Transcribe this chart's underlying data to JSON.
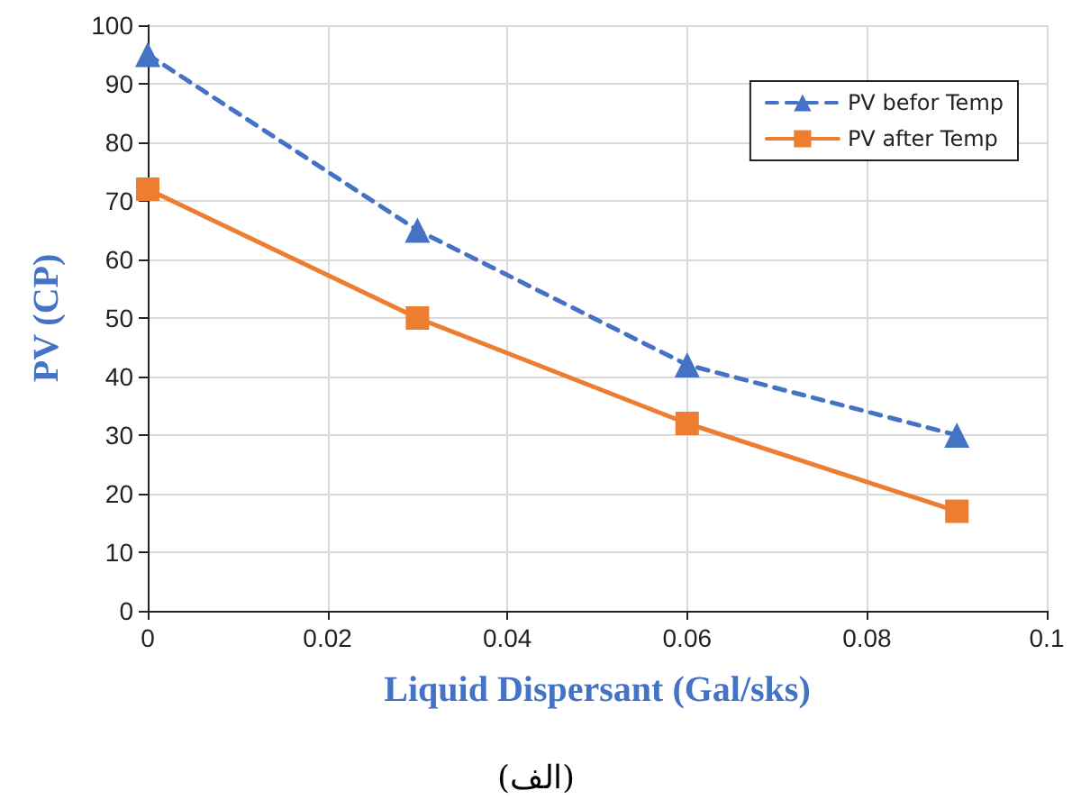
{
  "chart_data": {
    "type": "line",
    "xlabel": "Liquid Dispersant (Gal/sks)",
    "ylabel": "PV (CP)",
    "annotations": [
      "(الف)"
    ],
    "x": [
      0,
      0.03,
      0.06,
      0.09
    ],
    "series": [
      {
        "name": "PV befor Temp",
        "color": "#4472c4",
        "values": [
          95,
          65,
          42,
          30
        ],
        "marker": "triangle",
        "line_style": "dashed"
      },
      {
        "name": "PV after Temp",
        "color": "#ed7d31",
        "values": [
          72,
          50,
          32,
          17
        ],
        "marker": "square",
        "line_style": "solid"
      }
    ],
    "xlim": [
      0,
      0.1
    ],
    "xticks": [
      0,
      0.02,
      0.04,
      0.06,
      0.08,
      0.1
    ],
    "ylim": [
      0,
      100
    ],
    "yticks": [
      0,
      10,
      20,
      30,
      40,
      50,
      60,
      70,
      80,
      90,
      100
    ],
    "grid": true,
    "legend": "top right"
  }
}
